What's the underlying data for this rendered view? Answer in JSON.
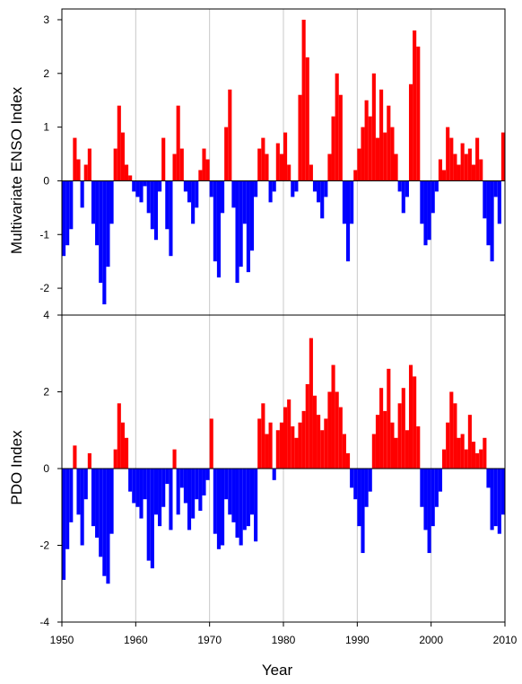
{
  "chart_data": [
    {
      "type": "bar",
      "panel": "top",
      "ylabel": "Multivariate ENSO Index",
      "xlabel": "",
      "xlim": [
        1950,
        2010
      ],
      "ylim": [
        -2.5,
        3.2
      ],
      "yticks": [
        "-2",
        "-1",
        "0",
        "1",
        "2",
        "3"
      ],
      "grid": "vertical lines at decades",
      "positive_color": "#ff0000",
      "negative_color": "#0000ff",
      "x": [
        1950.0,
        1950.5,
        1951.0,
        1951.5,
        1952.0,
        1952.5,
        1953.0,
        1953.5,
        1954.0,
        1954.5,
        1955.0,
        1955.5,
        1956.0,
        1956.5,
        1957.0,
        1957.5,
        1958.0,
        1958.5,
        1959.0,
        1959.5,
        1960.0,
        1960.5,
        1961.0,
        1961.5,
        1962.0,
        1962.5,
        1963.0,
        1963.5,
        1964.0,
        1964.5,
        1965.0,
        1965.5,
        1966.0,
        1966.5,
        1967.0,
        1967.5,
        1968.0,
        1968.5,
        1969.0,
        1969.5,
        1970.0,
        1970.5,
        1971.0,
        1971.5,
        1972.0,
        1972.5,
        1973.0,
        1973.5,
        1974.0,
        1974.5,
        1975.0,
        1975.5,
        1976.0,
        1976.5,
        1977.0,
        1977.5,
        1978.0,
        1978.5,
        1979.0,
        1979.5,
        1980.0,
        1980.5,
        1981.0,
        1981.5,
        1982.0,
        1982.5,
        1983.0,
        1983.5,
        1984.0,
        1984.5,
        1985.0,
        1985.5,
        1986.0,
        1986.5,
        1987.0,
        1987.5,
        1988.0,
        1988.5,
        1989.0,
        1989.5,
        1990.0,
        1990.5,
        1991.0,
        1991.5,
        1992.0,
        1992.5,
        1993.0,
        1993.5,
        1994.0,
        1994.5,
        1995.0,
        1995.5,
        1996.0,
        1996.5,
        1997.0,
        1997.5,
        1998.0,
        1998.5,
        1999.0,
        1999.5,
        2000.0,
        2000.5,
        2001.0,
        2001.5,
        2002.0,
        2002.5,
        2003.0,
        2003.5,
        2004.0,
        2004.5,
        2005.0,
        2005.5,
        2006.0,
        2006.5,
        2007.0,
        2007.5,
        2008.0,
        2008.5,
        2009.0,
        2009.5
      ],
      "values": [
        -1.4,
        -1.2,
        -0.9,
        0.8,
        0.4,
        -0.5,
        0.3,
        0.6,
        -0.8,
        -1.2,
        -1.9,
        -2.3,
        -1.6,
        -0.8,
        0.6,
        1.4,
        0.9,
        0.3,
        0.1,
        -0.2,
        -0.3,
        -0.4,
        -0.1,
        -0.6,
        -0.9,
        -1.1,
        -0.2,
        0.8,
        -0.9,
        -1.4,
        0.5,
        1.4,
        0.6,
        -0.2,
        -0.4,
        -0.8,
        -0.5,
        0.2,
        0.6,
        0.4,
        -0.3,
        -1.5,
        -1.8,
        -0.6,
        1.0,
        1.7,
        -0.5,
        -1.9,
        -1.6,
        -0.8,
        -1.7,
        -1.3,
        -0.3,
        0.6,
        0.8,
        0.5,
        -0.4,
        -0.2,
        0.7,
        0.5,
        0.9,
        0.3,
        -0.3,
        -0.2,
        1.6,
        3.0,
        2.3,
        0.3,
        -0.2,
        -0.4,
        -0.7,
        -0.3,
        0.5,
        1.2,
        2.0,
        1.6,
        -0.8,
        -1.5,
        -0.8,
        0.2,
        0.6,
        1.0,
        1.5,
        1.2,
        2.0,
        0.8,
        1.7,
        0.9,
        1.4,
        1.0,
        0.5,
        -0.2,
        -0.6,
        -0.3,
        1.8,
        2.8,
        2.5,
        -0.8,
        -1.2,
        -1.1,
        -0.6,
        -0.2,
        0.4,
        0.2,
        1.0,
        0.8,
        0.5,
        0.3,
        0.7,
        0.5,
        0.6,
        0.3,
        0.8,
        0.4,
        -0.7,
        -1.2,
        -1.5,
        -0.3,
        -0.8,
        0.9
      ]
    },
    {
      "type": "bar",
      "panel": "bottom",
      "ylabel": "PDO Index",
      "xlabel": "Year",
      "xlim": [
        1950,
        2010
      ],
      "ylim": [
        -4,
        4
      ],
      "yticks": [
        "-4",
        "-2",
        "0",
        "2",
        "4"
      ],
      "xticks": [
        "1950",
        "1960",
        "1970",
        "1980",
        "1990",
        "2000",
        "2010"
      ],
      "grid": "vertical lines at decades",
      "positive_color": "#ff0000",
      "negative_color": "#0000ff",
      "x": [
        1950.0,
        1950.5,
        1951.0,
        1951.5,
        1952.0,
        1952.5,
        1953.0,
        1953.5,
        1954.0,
        1954.5,
        1955.0,
        1955.5,
        1956.0,
        1956.5,
        1957.0,
        1957.5,
        1958.0,
        1958.5,
        1959.0,
        1959.5,
        1960.0,
        1960.5,
        1961.0,
        1961.5,
        1962.0,
        1962.5,
        1963.0,
        1963.5,
        1964.0,
        1964.5,
        1965.0,
        1965.5,
        1966.0,
        1966.5,
        1967.0,
        1967.5,
        1968.0,
        1968.5,
        1969.0,
        1969.5,
        1970.0,
        1970.5,
        1971.0,
        1971.5,
        1972.0,
        1972.5,
        1973.0,
        1973.5,
        1974.0,
        1974.5,
        1975.0,
        1975.5,
        1976.0,
        1976.5,
        1977.0,
        1977.5,
        1978.0,
        1978.5,
        1979.0,
        1979.5,
        1980.0,
        1980.5,
        1981.0,
        1981.5,
        1982.0,
        1982.5,
        1983.0,
        1983.5,
        1984.0,
        1984.5,
        1985.0,
        1985.5,
        1986.0,
        1986.5,
        1987.0,
        1987.5,
        1988.0,
        1988.5,
        1989.0,
        1989.5,
        1990.0,
        1990.5,
        1991.0,
        1991.5,
        1992.0,
        1992.5,
        1993.0,
        1993.5,
        1994.0,
        1994.5,
        1995.0,
        1995.5,
        1996.0,
        1996.5,
        1997.0,
        1997.5,
        1998.0,
        1998.5,
        1999.0,
        1999.5,
        2000.0,
        2000.5,
        2001.0,
        2001.5,
        2002.0,
        2002.5,
        2003.0,
        2003.5,
        2004.0,
        2004.5,
        2005.0,
        2005.5,
        2006.0,
        2006.5,
        2007.0,
        2007.5,
        2008.0,
        2008.5,
        2009.0,
        2009.5
      ],
      "values": [
        -2.9,
        -2.1,
        -1.4,
        0.6,
        -1.2,
        -2.0,
        -0.8,
        0.4,
        -1.5,
        -1.8,
        -2.3,
        -2.8,
        -3.0,
        -1.7,
        0.5,
        1.7,
        1.2,
        0.8,
        -0.6,
        -0.9,
        -1.0,
        -1.3,
        -0.8,
        -2.4,
        -2.6,
        -1.2,
        -1.5,
        -1.0,
        -0.4,
        -1.6,
        0.5,
        -1.2,
        -0.5,
        -0.9,
        -1.6,
        -1.3,
        -0.8,
        -1.1,
        -0.7,
        -0.3,
        1.3,
        -1.7,
        -2.1,
        -2.0,
        -0.8,
        -1.2,
        -1.4,
        -1.8,
        -2.0,
        -1.6,
        -1.5,
        -1.2,
        -1.9,
        1.3,
        1.7,
        0.9,
        1.2,
        -0.3,
        1.0,
        1.2,
        1.6,
        1.8,
        1.1,
        0.8,
        1.2,
        1.5,
        2.2,
        3.4,
        1.9,
        1.4,
        1.0,
        1.3,
        2.0,
        2.7,
        2.0,
        1.6,
        0.9,
        0.4,
        -0.5,
        -0.8,
        -1.5,
        -2.2,
        -1.0,
        -0.6,
        0.9,
        1.4,
        2.1,
        1.5,
        2.6,
        1.2,
        0.8,
        1.7,
        2.1,
        1.0,
        2.7,
        2.4,
        1.1,
        -1.0,
        -1.6,
        -2.2,
        -1.5,
        -1.0,
        -0.6,
        0.5,
        1.2,
        2.0,
        1.7,
        0.8,
        0.9,
        0.5,
        1.4,
        0.7,
        0.4,
        0.5,
        0.8,
        -0.5,
        -1.6,
        -1.5,
        -1.7,
        -1.2
      ]
    }
  ]
}
